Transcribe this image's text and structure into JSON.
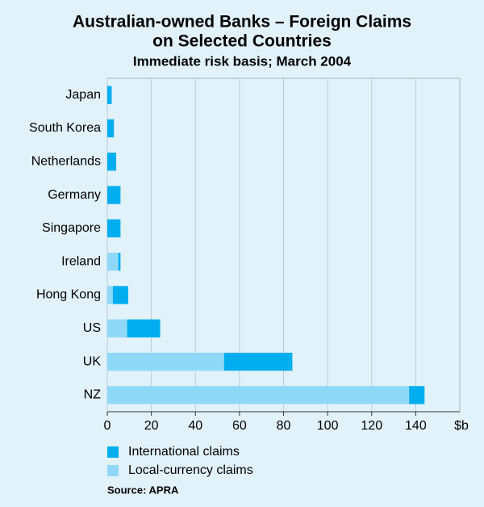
{
  "chart_data": {
    "type": "stacked-barh",
    "title": [
      "Australian-owned Banks – Foreign Claims",
      "on Selected Countries"
    ],
    "subtitle": "Immediate risk basis; March 2004",
    "categories": [
      "Japan",
      "South Korea",
      "Netherlands",
      "Germany",
      "Singapore",
      "Ireland",
      "Hong Kong",
      "US",
      "UK",
      "NZ"
    ],
    "series": [
      {
        "name": "International claims",
        "color": "#00aeef",
        "values": [
          2,
          3,
          4,
          6,
          6,
          1,
          7,
          15,
          31,
          7
        ]
      },
      {
        "name": "Local-currency claims",
        "color": "#8fd8f8",
        "values": [
          0,
          0,
          0,
          0,
          0,
          5,
          2.5,
          9,
          53,
          137
        ]
      }
    ],
    "stack_order": [
      1,
      0
    ],
    "xlim": [
      0,
      160
    ],
    "xticks": [
      0,
      20,
      40,
      60,
      80,
      100,
      120,
      140
    ],
    "x_unit": "$b",
    "grid": true,
    "source": "Source: APRA"
  }
}
